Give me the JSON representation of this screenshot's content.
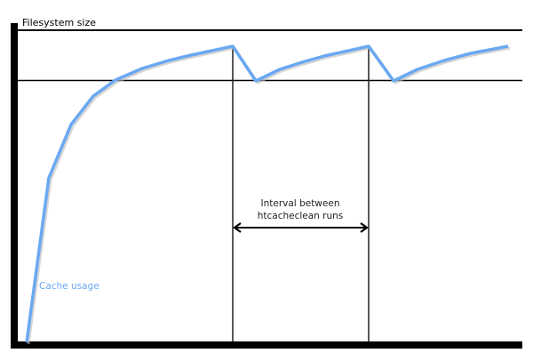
{
  "diagram": {
    "title": "Filesystem size",
    "curve_label": "Cache usage",
    "interval_label_line1": "Interval between",
    "interval_label_line2": "htcacheclean runs",
    "colors": {
      "curve": "#6aa8f2",
      "lines": "#000000"
    }
  }
}
